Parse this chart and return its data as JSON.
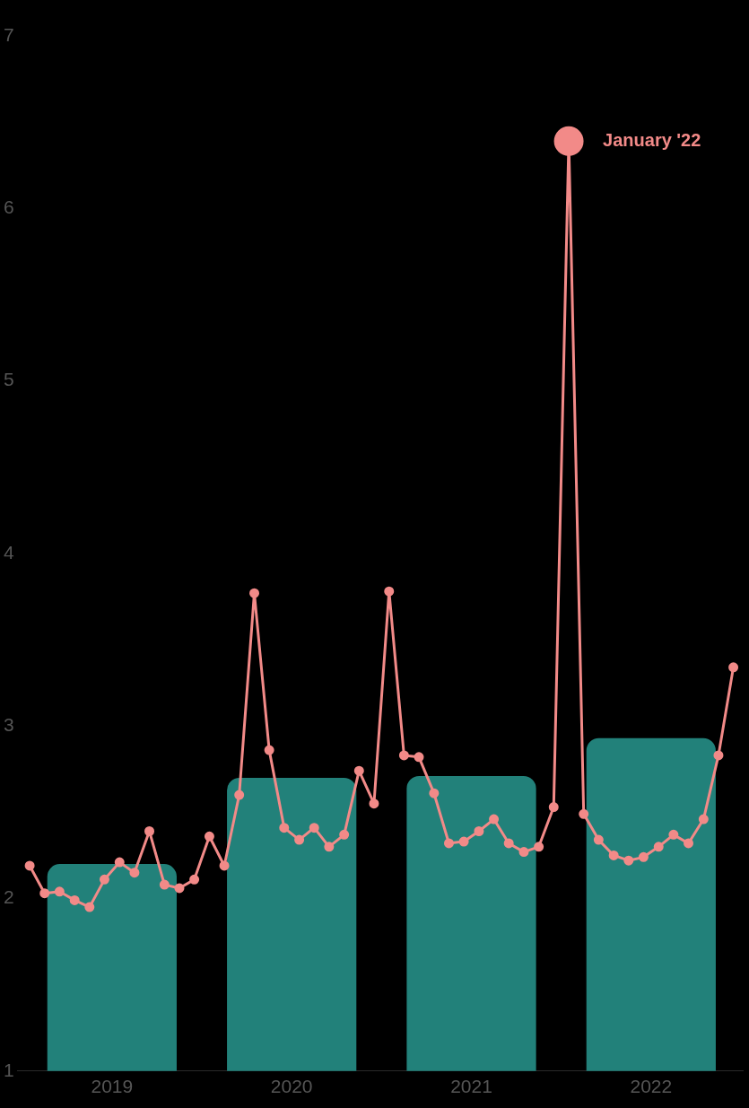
{
  "chart_data": {
    "type": "bar",
    "series": [
      {
        "color": "#22817a",
        "x": [
          2019.5,
          2020.5,
          2021.5,
          2022.5
        ],
        "values": [
          2.2,
          2.7,
          2.71,
          2.93
        ]
      },
      {
        "type": "line",
        "color": "#f28a88",
        "x": [
          2019.042,
          2019.125,
          2019.208,
          2019.292,
          2019.375,
          2019.458,
          2019.542,
          2019.625,
          2019.708,
          2019.792,
          2019.875,
          2019.958,
          2020.042,
          2020.125,
          2020.208,
          2020.292,
          2020.375,
          2020.458,
          2020.542,
          2020.625,
          2020.708,
          2020.792,
          2020.875,
          2020.958,
          2021.042,
          2021.125,
          2021.208,
          2021.292,
          2021.375,
          2021.458,
          2021.542,
          2021.625,
          2021.708,
          2021.792,
          2021.875,
          2021.958,
          2022.042,
          2022.125,
          2022.208,
          2022.292,
          2022.375,
          2022.458,
          2022.542,
          2022.625,
          2022.708,
          2022.792,
          2022.875,
          2022.958
        ],
        "values": [
          2.19,
          2.03,
          2.04,
          1.99,
          1.95,
          2.11,
          2.21,
          2.15,
          2.39,
          2.08,
          2.06,
          2.11,
          2.36,
          2.19,
          2.6,
          3.77,
          2.86,
          2.41,
          2.34,
          2.41,
          2.3,
          2.37,
          2.74,
          2.55,
          3.78,
          2.83,
          2.82,
          2.61,
          2.32,
          2.33,
          2.39,
          2.46,
          2.32,
          2.27,
          2.3,
          2.53,
          6.39,
          2.49,
          2.34,
          2.25,
          2.22,
          2.24,
          2.3,
          2.37,
          2.32,
          2.46,
          2.83,
          3.34
        ]
      }
    ],
    "xlim": [
      2018.975,
      2023.01
    ],
    "xticks": [
      {
        "value": 2019.5,
        "label": "2019"
      },
      {
        "value": 2020.5,
        "label": "2020"
      },
      {
        "value": 2021.5,
        "label": "2021"
      },
      {
        "value": 2022.5,
        "label": "2022"
      }
    ],
    "ylim": [
      1,
      7
    ],
    "yticks": [
      1,
      2,
      3,
      4,
      5,
      6,
      7
    ],
    "annotations": [
      {
        "text": "January '22",
        "x": 2022.042,
        "y": 6.39
      }
    ],
    "marker": "circle",
    "grid": false,
    "legend": false
  }
}
